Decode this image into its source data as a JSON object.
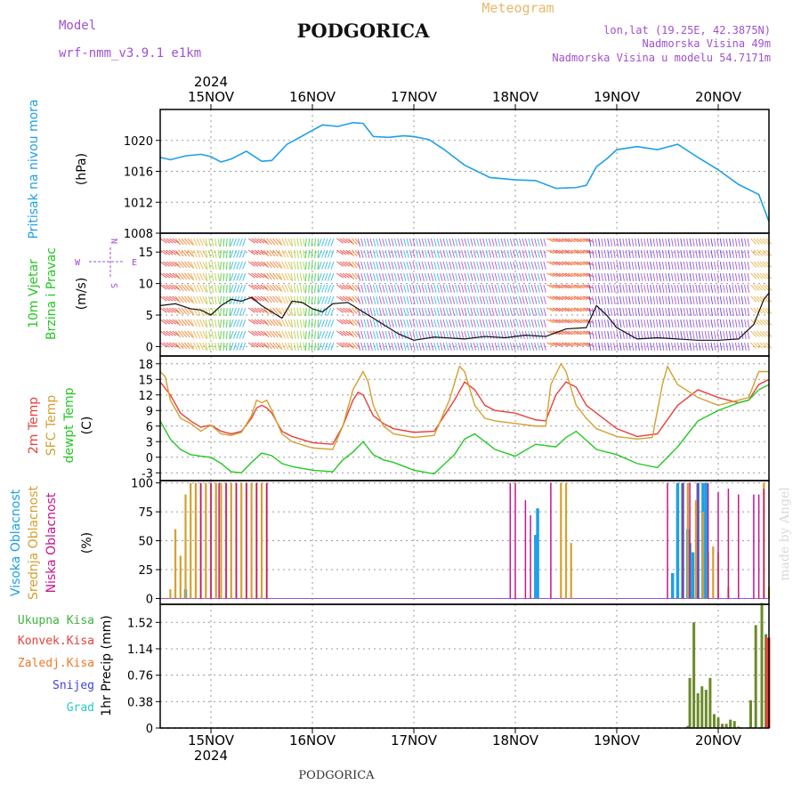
{
  "header": {
    "model_label": "Model",
    "model_name": "wrf-nmm_v3.9.1 e1km",
    "city": "PODGORICA",
    "meteogram": "Meteogram",
    "lonlat": "lon,lat (19.25E, 42.3875N)",
    "elevation": "Nadmorska Visina 49m",
    "model_elevation": "Nadmorska Visina u modelu 54.7171m",
    "footer_city": "PODGORICA",
    "watermark": "made by Angel"
  },
  "colors": {
    "pressure": "#1ea0e6",
    "temp2m": "#e8403a",
    "sfc": "#d4a030",
    "dewpt": "#22c822",
    "high_cloud": "#1ea0e6",
    "mid_cloud": "#d4a030",
    "low_cloud": "#c8148c",
    "total_precip": "#3cb43c",
    "conv_precip": "#e8403a",
    "frozen_precip": "#f07828",
    "snow": "#4040e0",
    "graupel": "#28c8c8",
    "purple_text": "#a050d0",
    "tan_text": "#e8b868"
  },
  "chart_data": [
    {
      "type": "line",
      "id": "pressure",
      "ylabel_lines": [
        "Pritisak na nivou mora",
        "(hPa)"
      ],
      "ylim": [
        1008,
        1024
      ],
      "yticks": [
        1008,
        1012,
        1016,
        1020
      ],
      "x_start": "15NOV 2024 -0.5d",
      "x_unit": "days from 15NOV 00UTC",
      "series": [
        {
          "values_x": [
            -0.5,
            -0.4,
            -0.25,
            -0.1,
            0.0,
            0.1,
            0.2,
            0.35,
            0.5,
            0.6,
            0.75,
            0.85,
            1.0,
            1.1,
            1.25,
            1.4,
            1.5,
            1.6,
            1.75,
            1.9,
            2.0,
            2.15,
            2.3,
            2.5,
            2.75,
            3.0,
            3.2,
            3.4,
            3.6,
            3.7,
            3.8,
            3.9,
            4.0,
            4.2,
            4.4,
            4.6,
            4.8,
            5.0,
            5.2,
            5.4,
            5.5
          ],
          "values": [
            1017.8,
            1017.5,
            1018.0,
            1018.2,
            1017.9,
            1017.2,
            1017.6,
            1018.6,
            1017.3,
            1017.4,
            1019.5,
            1020.2,
            1021.3,
            1022.0,
            1021.8,
            1022.3,
            1022.2,
            1020.5,
            1020.4,
            1020.6,
            1020.5,
            1020.1,
            1018.8,
            1016.8,
            1015.2,
            1014.9,
            1014.8,
            1013.8,
            1013.9,
            1014.2,
            1016.6,
            1017.6,
            1018.8,
            1019.2,
            1018.8,
            1019.5,
            1017.8,
            1016.2,
            1014.3,
            1013.0,
            1009.5
          ]
        }
      ]
    },
    {
      "type": "line",
      "id": "wind",
      "ylabel_lines": [
        "10m Vjetar",
        "Brzina i Pravac",
        "(m/s)"
      ],
      "ylim": [
        -1.5,
        18
      ],
      "yticks": [
        0,
        5,
        10,
        15
      ],
      "compass": {
        "n": "N",
        "s": "S",
        "w": "W",
        "e": "E"
      },
      "series": [
        {
          "name": "speed",
          "values_x": [
            -0.5,
            -0.35,
            -0.2,
            -0.1,
            0.0,
            0.1,
            0.2,
            0.3,
            0.4,
            0.5,
            0.6,
            0.7,
            0.8,
            0.9,
            1.0,
            1.1,
            1.2,
            1.35,
            1.5,
            1.6,
            1.7,
            1.85,
            2.0,
            2.2,
            2.5,
            2.7,
            2.9,
            3.1,
            3.3,
            3.5,
            3.7,
            3.8,
            3.9,
            4.0,
            4.2,
            4.4,
            4.6,
            4.8,
            5.0,
            5.2,
            5.35,
            5.45,
            5.5
          ],
          "values": [
            6.5,
            6.8,
            6.0,
            5.8,
            5.0,
            6.5,
            7.5,
            7.2,
            7.8,
            6.5,
            5.5,
            4.5,
            7.2,
            7.0,
            6.0,
            5.5,
            6.8,
            7.0,
            5.5,
            4.5,
            3.5,
            2.0,
            1.0,
            1.5,
            1.2,
            1.6,
            1.4,
            1.8,
            1.6,
            2.8,
            3.0,
            6.5,
            5.0,
            3.0,
            1.2,
            1.4,
            1.2,
            1.0,
            1.0,
            1.2,
            3.5,
            7.5,
            8.5
          ]
        }
      ]
    },
    {
      "type": "line",
      "id": "temperature",
      "ylabel_lines": [
        "2m Temp",
        "SFC Temp",
        "dewpt Temp",
        "(C)"
      ],
      "ylim": [
        -4.5,
        19.5
      ],
      "yticks": [
        -3,
        0,
        3,
        6,
        9,
        12,
        15,
        18
      ],
      "series": [
        {
          "name": "2m Temp",
          "values_x": [
            -0.5,
            -0.4,
            -0.3,
            -0.2,
            -0.1,
            0.0,
            0.1,
            0.2,
            0.3,
            0.4,
            0.45,
            0.5,
            0.55,
            0.6,
            0.7,
            0.8,
            1.0,
            1.2,
            1.3,
            1.4,
            1.45,
            1.5,
            1.6,
            1.7,
            1.8,
            2.0,
            2.2,
            2.4,
            2.5,
            2.6,
            2.7,
            2.8,
            3.0,
            3.2,
            3.3,
            3.4,
            3.5,
            3.6,
            3.7,
            3.8,
            4.0,
            4.2,
            4.4,
            4.6,
            4.8,
            5.0,
            5.2,
            5.3,
            5.4,
            5.5
          ],
          "values": [
            14.5,
            12.0,
            8.5,
            7.0,
            5.8,
            6.2,
            5.0,
            4.5,
            5.0,
            7.5,
            9.5,
            10.0,
            9.5,
            8.5,
            5.0,
            4.0,
            2.8,
            2.5,
            6.0,
            11.0,
            12.5,
            12.0,
            8.0,
            6.5,
            5.5,
            4.8,
            5.0,
            11.0,
            14.5,
            13.0,
            10.0,
            9.0,
            8.5,
            7.2,
            7.0,
            12.0,
            14.5,
            13.5,
            10.0,
            8.5,
            5.5,
            4.0,
            4.5,
            10.0,
            13.0,
            11.5,
            10.5,
            11.0,
            14.0,
            15.0
          ]
        },
        {
          "name": "SFC Temp",
          "values_x": [
            -0.5,
            -0.45,
            -0.4,
            -0.3,
            -0.2,
            -0.1,
            0.0,
            0.1,
            0.2,
            0.3,
            0.4,
            0.45,
            0.5,
            0.55,
            0.6,
            0.7,
            0.8,
            1.0,
            1.2,
            1.3,
            1.4,
            1.5,
            1.55,
            1.6,
            1.7,
            1.8,
            2.0,
            2.2,
            2.35,
            2.45,
            2.5,
            2.6,
            2.7,
            2.8,
            3.0,
            3.2,
            3.3,
            3.35,
            3.45,
            3.5,
            3.6,
            3.7,
            3.8,
            4.0,
            4.2,
            4.35,
            4.45,
            4.5,
            4.6,
            4.8,
            5.0,
            5.2,
            5.3,
            5.4,
            5.5
          ],
          "values": [
            16.5,
            15.5,
            11.0,
            7.5,
            6.5,
            5.0,
            6.2,
            4.5,
            4.2,
            4.8,
            8.0,
            11.0,
            10.5,
            11.0,
            9.0,
            4.5,
            3.0,
            1.8,
            1.5,
            6.0,
            13.0,
            16.5,
            14.5,
            10.0,
            6.0,
            4.5,
            3.8,
            4.2,
            11.0,
            17.5,
            16.5,
            10.0,
            7.5,
            7.0,
            6.5,
            6.0,
            6.0,
            14.0,
            18.0,
            16.5,
            10.0,
            7.5,
            5.5,
            4.0,
            3.5,
            3.8,
            14.0,
            17.5,
            14.0,
            11.5,
            10.0,
            11.0,
            11.5,
            16.5,
            16.5
          ]
        },
        {
          "name": "dewpt Temp",
          "values_x": [
            -0.5,
            -0.4,
            -0.3,
            -0.2,
            -0.1,
            0.0,
            0.1,
            0.2,
            0.3,
            0.4,
            0.5,
            0.6,
            0.7,
            0.8,
            1.0,
            1.2,
            1.3,
            1.4,
            1.5,
            1.6,
            1.7,
            1.8,
            2.0,
            2.2,
            2.4,
            2.5,
            2.6,
            2.8,
            3.0,
            3.2,
            3.4,
            3.5,
            3.6,
            3.8,
            4.0,
            4.2,
            4.4,
            4.6,
            4.8,
            5.0,
            5.2,
            5.3,
            5.4,
            5.5
          ],
          "values": [
            7.0,
            3.5,
            1.5,
            0.5,
            0.2,
            0.0,
            -1.2,
            -2.8,
            -3.0,
            -1.0,
            0.8,
            0.3,
            -1.2,
            -1.8,
            -2.5,
            -2.8,
            -0.5,
            1.0,
            3.0,
            0.5,
            -0.5,
            -1.0,
            -2.5,
            -3.2,
            0.5,
            3.5,
            4.5,
            1.5,
            0.2,
            2.5,
            2.0,
            3.8,
            5.0,
            1.5,
            0.5,
            -1.2,
            -2.0,
            2.0,
            7.0,
            9.0,
            10.5,
            11.0,
            13.0,
            14.0
          ]
        }
      ]
    },
    {
      "type": "bar",
      "id": "clouds",
      "ylabel_lines": [
        "Visoka Oblacnost",
        "Srednja Oblacnost",
        "Niska Oblacnost",
        "(%)"
      ],
      "ylim": [
        -5,
        102
      ],
      "yticks": [
        0,
        25,
        50,
        75,
        100
      ],
      "series": [
        {
          "name": "Visoka Oblacnost",
          "x": [
            -0.25,
            3.2,
            3.22,
            4.55,
            4.6,
            4.65,
            4.7,
            4.72,
            4.75,
            4.8,
            4.85,
            4.88
          ],
          "values": [
            8,
            55,
            78,
            22,
            100,
            100,
            60,
            48,
            40,
            100,
            100,
            100
          ]
        },
        {
          "name": "Srednja Oblacnost",
          "x": [
            -0.4,
            -0.35,
            -0.3,
            -0.25,
            -0.2,
            -0.15,
            -0.1,
            -0.05,
            0.0,
            0.05,
            0.1,
            0.15,
            0.2,
            0.25,
            0.3,
            0.35,
            0.4,
            0.45,
            0.5,
            0.55,
            3.45,
            3.5,
            3.55,
            4.7,
            4.78,
            4.85,
            4.9,
            4.95,
            5.0,
            5.1,
            5.45,
            5.5
          ],
          "values": [
            8,
            60,
            37,
            90,
            100,
            100,
            100,
            100,
            100,
            100,
            100,
            100,
            100,
            100,
            100,
            100,
            100,
            100,
            100,
            100,
            100,
            100,
            48,
            100,
            85,
            75,
            40,
            45,
            40,
            10,
            100,
            10
          ]
        },
        {
          "name": "Niska Oblacnost",
          "x": [
            -0.1,
            0.0,
            0.08,
            0.15,
            0.25,
            0.35,
            0.45,
            0.55,
            2.95,
            3.0,
            3.1,
            3.15,
            3.35,
            4.5,
            4.65,
            4.72,
            4.8,
            4.9,
            5.0,
            5.1,
            5.2,
            5.35,
            5.4,
            5.45
          ],
          "values": [
            100,
            100,
            100,
            100,
            100,
            100,
            100,
            100,
            100,
            100,
            85,
            72,
            100,
            100,
            100,
            100,
            100,
            100,
            92,
            95,
            90,
            90,
            90,
            95
          ]
        }
      ]
    },
    {
      "type": "bar",
      "id": "precip",
      "ylabel_lines": [
        "1hr Precip (mm)"
      ],
      "legend": [
        "Ukupna Kisa",
        "Konvek.Kisa",
        "Zaledj.Kisa",
        "Snijeg",
        "Grad"
      ],
      "ylim": [
        0,
        1.78
      ],
      "yticks": [
        0,
        0.38,
        0.76,
        1.14,
        1.52
      ],
      "ytick_labels": [
        "0",
        "0.38",
        "0.76",
        "1.14",
        "1.52"
      ],
      "series": [
        {
          "name": "Ukupna Kisa",
          "x": [
            4.7,
            4.72,
            4.76,
            4.8,
            4.84,
            4.88,
            4.92,
            4.96,
            5.0,
            5.04,
            5.08,
            5.12,
            5.16,
            5.2,
            5.32,
            5.37,
            5.43,
            5.47
          ],
          "values": [
            0.03,
            0.72,
            1.52,
            0.5,
            0.6,
            0.55,
            0.72,
            0.2,
            0.15,
            0.06,
            0.06,
            0.12,
            0.1,
            0.02,
            0.4,
            1.48,
            1.8,
            1.35
          ]
        },
        {
          "name": "Konvek.Kisa",
          "x": [
            5.48,
            5.5
          ],
          "values": [
            1.3,
            1.3
          ]
        }
      ]
    }
  ],
  "xaxis": {
    "top_year": "2024",
    "bottom_year": "2024",
    "day_labels": [
      "15NOV",
      "16NOV",
      "17NOV",
      "18NOV",
      "19NOV",
      "20NOV"
    ]
  }
}
